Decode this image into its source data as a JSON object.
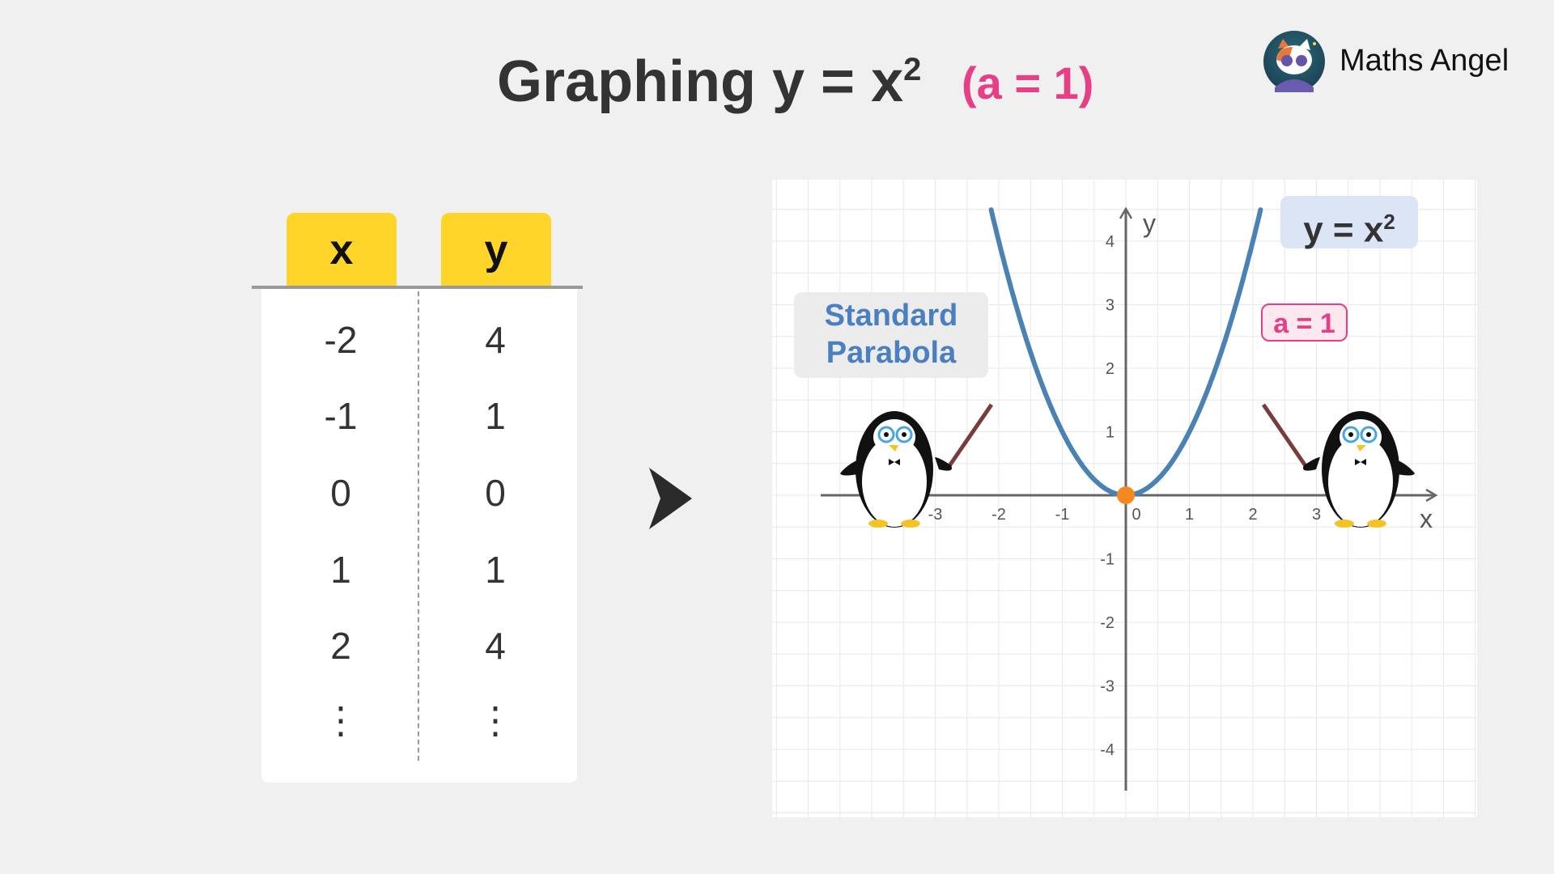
{
  "title": {
    "text": "Graphing y = x",
    "exponent": "2",
    "subtitle": "(a = 1)"
  },
  "brand": {
    "name": "Maths Angel",
    "logo_icon": "cat-with-sunglasses-avatar"
  },
  "table": {
    "headers": [
      "x",
      "y"
    ],
    "rows": [
      [
        "-2",
        "4"
      ],
      [
        "-1",
        "1"
      ],
      [
        "0",
        "0"
      ],
      [
        "1",
        "1"
      ],
      [
        "2",
        "4"
      ],
      [
        "⋮",
        "⋮"
      ]
    ],
    "header_color": "#ffd52a"
  },
  "arrow_icon": "play-arrow-right",
  "chart_data": {
    "type": "line",
    "equation": "y = x",
    "equation_exponent": "2",
    "xlabel": "x",
    "ylabel": "y",
    "xticks": [
      "-3",
      "-2",
      "-1",
      "0",
      "1",
      "2",
      "3"
    ],
    "yticks": [
      "4",
      "3",
      "2",
      "1",
      "-1",
      "-2",
      "-3",
      "-4"
    ],
    "xlim": [
      -3.7,
      4.8
    ],
    "ylim": [
      -4.9,
      4.9
    ],
    "grid": true,
    "series": [
      {
        "function": "x^2",
        "x_range": [
          -2.12,
          2.12
        ],
        "color": "#4a82b4"
      }
    ],
    "highlight_point": {
      "x": 0,
      "y": 0,
      "color": "#f5891f"
    },
    "annotations": {
      "name_label": "Standard Parabola",
      "name_line1": "Standard",
      "name_line2": "Parabola",
      "a_label": "a = 1"
    },
    "colors": {
      "accent_pink": "#e73f86",
      "label_blue": "#4a7fc0"
    }
  },
  "decorations": {
    "left": "penguin-with-pointer",
    "right": "penguin-with-pointer"
  }
}
